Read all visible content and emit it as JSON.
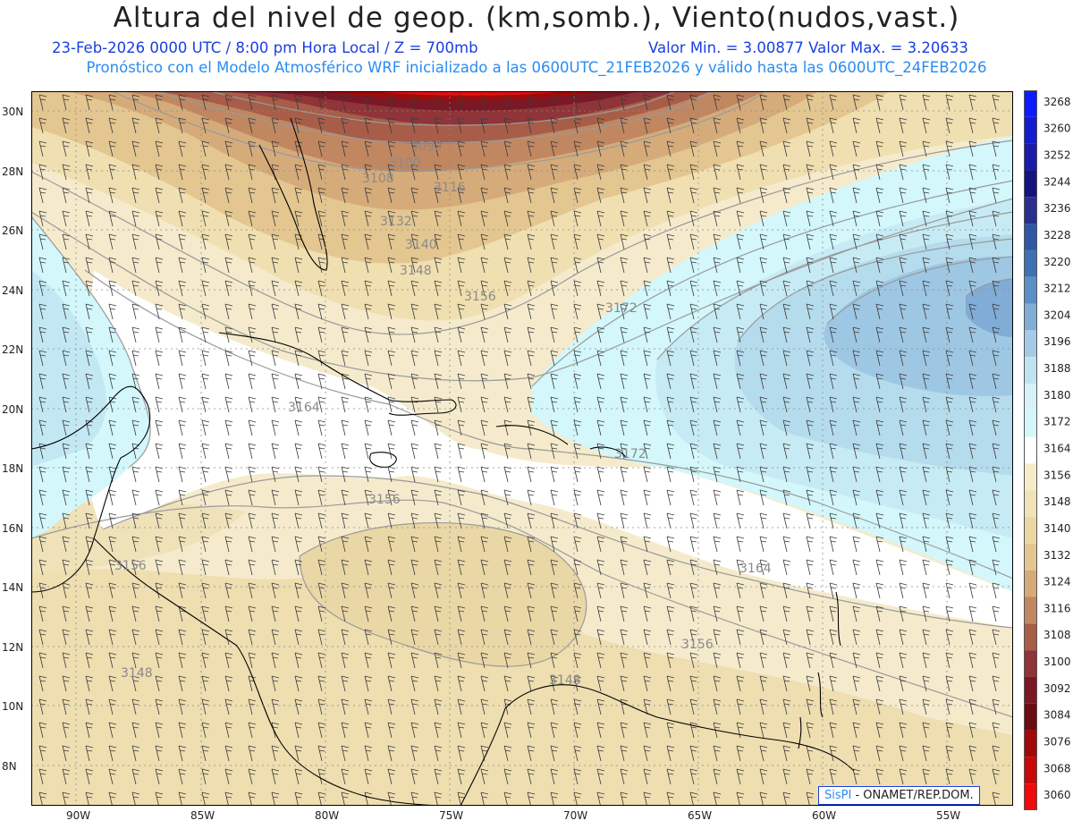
{
  "header": {
    "title": "Altura del nivel de geop. (km,somb.), Viento(nudos,vast.)",
    "date_line": "23-Feb-2026  0000 UTC / 8:00 pm Hora Local / Z = 700mb",
    "minmax_line": "Valor Min. = 3.00877  Valor Max. = 3.20633",
    "model_line": "Pronóstico con el Modelo Atmosférico WRF inicializado a las 0600UTC_21FEB2026 y válido hasta las  0600UTC_24FEB2026"
  },
  "credit": {
    "logo": "SisPI",
    "text": "- ONAMET/REP.DOM."
  },
  "map": {
    "lon_labels": [
      "90W",
      "85W",
      "80W",
      "75W",
      "70W",
      "65W",
      "60W",
      "55W"
    ],
    "lat_labels": [
      "30N",
      "28N",
      "26N",
      "24N",
      "22N",
      "20N",
      "18N",
      "16N",
      "14N",
      "12N",
      "10N",
      "8N"
    ],
    "contour_labels": [
      "3092",
      "3100",
      "3108",
      "3116",
      "3132",
      "3140",
      "3148",
      "3156",
      "3172",
      "3164",
      "3156",
      "3156",
      "3164",
      "3172",
      "3156",
      "3148",
      "3148"
    ]
  },
  "colorbar": {
    "levels": [
      "3268",
      "3260",
      "3252",
      "3244",
      "3236",
      "3228",
      "3220",
      "3212",
      "3204",
      "3196",
      "3188",
      "3180",
      "3172",
      "3164",
      "3156",
      "3148",
      "3140",
      "3132",
      "3124",
      "3116",
      "3108",
      "3100",
      "3092",
      "3084",
      "3076",
      "3068",
      "3060"
    ],
    "colors": [
      "#0b1dff",
      "#141ccf",
      "#1c1aa8",
      "#14137e",
      "#2a2f8e",
      "#2f55a3",
      "#3d71b4",
      "#5b8fc6",
      "#7fadd8",
      "#a4cae7",
      "#c0e3f2",
      "#d6f2f8",
      "#d3f7fb",
      "#ffffff",
      "#f6ecc8",
      "#f1e3b8",
      "#ecd7a2",
      "#e3c690",
      "#d5ab7a",
      "#c08761",
      "#a75d48",
      "#8f3438",
      "#7a1825",
      "#6b0b13",
      "#a00a0a",
      "#c80808",
      "#f00a0a"
    ]
  }
}
